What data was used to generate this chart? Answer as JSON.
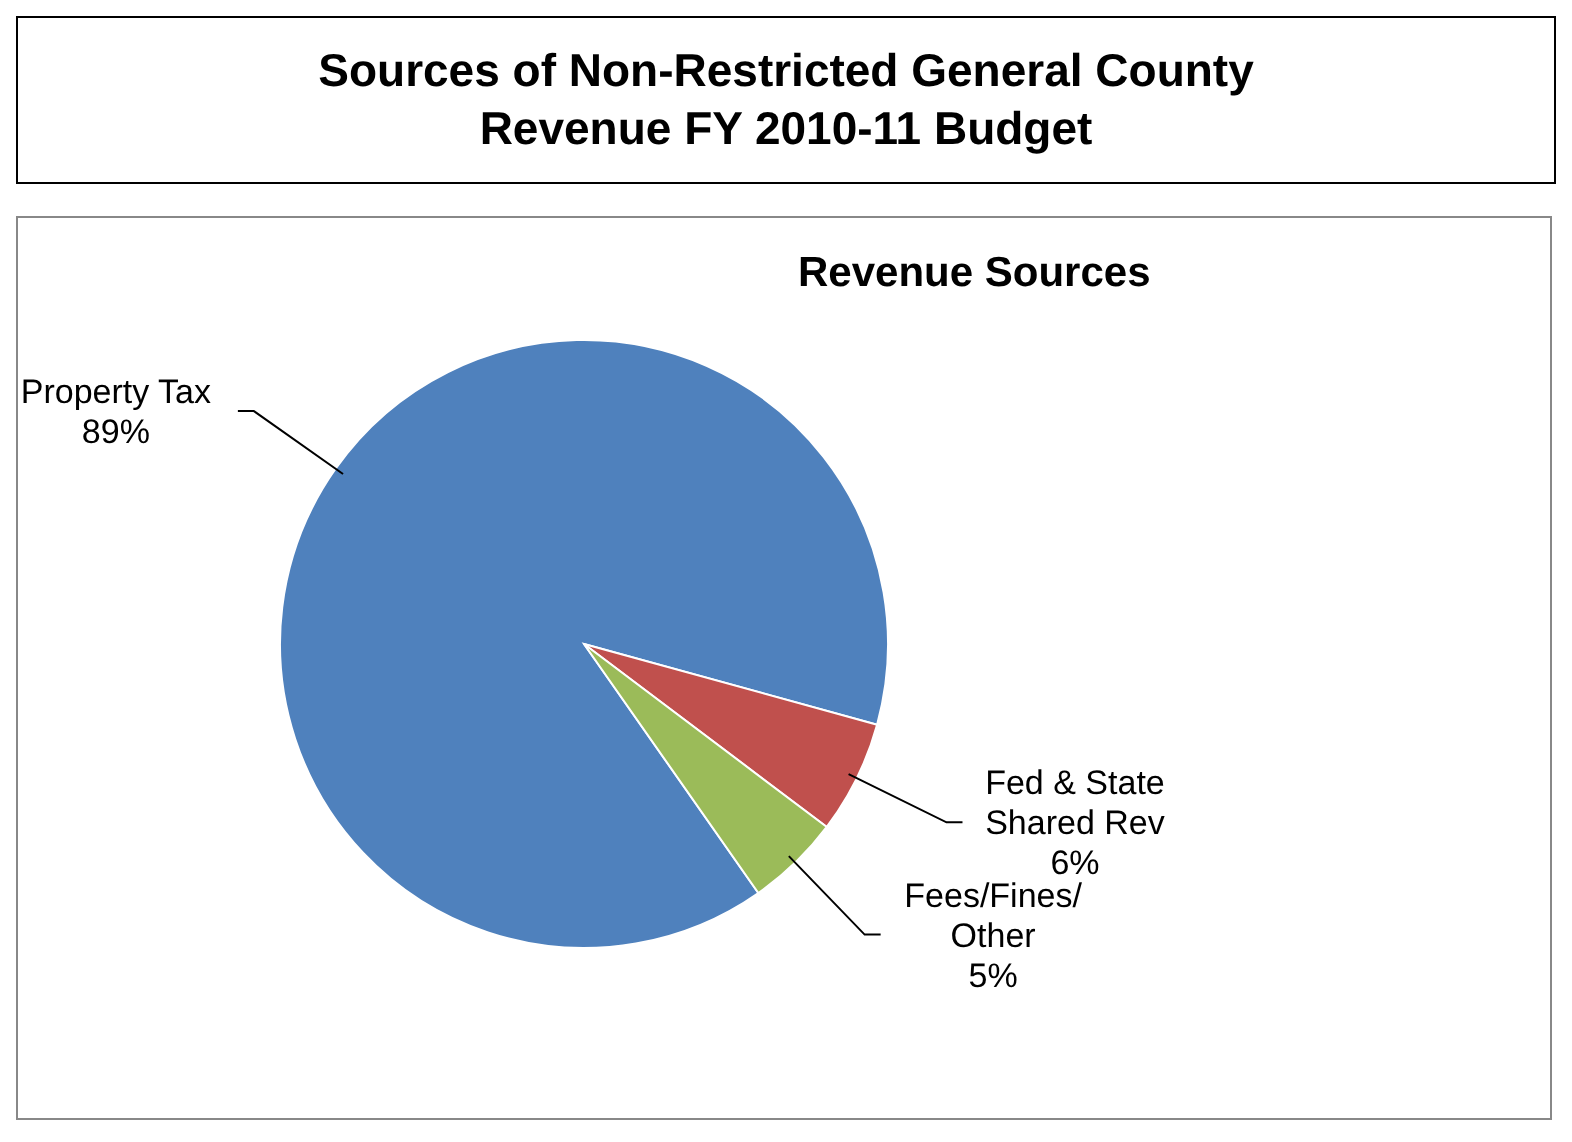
{
  "chart_data": {
    "type": "pie",
    "title": "Sources of Non-Restricted General County Revenue FY 2010-11 Budget",
    "subtitle": "Revenue Sources",
    "categories": [
      "Property Tax",
      "Fed & State Shared Rev",
      "Fees/Fines/Other"
    ],
    "values": [
      89,
      6,
      5
    ],
    "colors": [
      "#4f81bd",
      "#c0504d",
      "#9bbb59"
    ],
    "value_labels": [
      "89%",
      "6%",
      "5%"
    ]
  }
}
